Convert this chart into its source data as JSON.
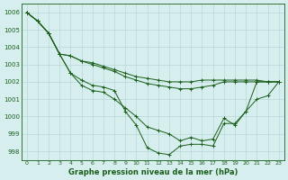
{
  "background_color": "#d6eeee",
  "grid_color": "#b8d8d8",
  "line_color": "#1a5e1a",
  "ylim": [
    997.5,
    1006.5
  ],
  "xlim": [
    -0.5,
    23.5
  ],
  "yticks": [
    998,
    999,
    1000,
    1001,
    1002,
    1003,
    1004,
    1005,
    1006
  ],
  "xticks": [
    0,
    1,
    2,
    3,
    4,
    5,
    6,
    7,
    8,
    9,
    10,
    11,
    12,
    13,
    14,
    15,
    16,
    17,
    18,
    19,
    20,
    21,
    22,
    23
  ],
  "xlabel": "Graphe pression niveau de la mer (hPa)",
  "series": [
    [
      1006.0,
      1005.5,
      1004.8,
      1003.6,
      1002.5,
      1002.1,
      1001.8,
      1001.7,
      1001.5,
      1000.3,
      999.5,
      998.2,
      997.9,
      997.8,
      998.3,
      998.4,
      998.4,
      998.3,
      999.6,
      999.6,
      1000.3,
      1002.0,
      1002.0,
      1002.0
    ],
    [
      1006.0,
      1005.5,
      1004.8,
      1003.6,
      1003.5,
      1003.2,
      1003.0,
      1002.8,
      1002.6,
      1002.3,
      1002.1,
      1001.9,
      1001.8,
      1001.7,
      1001.6,
      1001.6,
      1001.7,
      1001.8,
      1002.0,
      1002.0,
      1002.0,
      1002.0,
      1002.0,
      1002.0
    ],
    [
      1006.0,
      1005.5,
      1004.8,
      1003.6,
      1003.5,
      1003.2,
      1003.1,
      1002.9,
      1002.7,
      1002.5,
      1002.3,
      1002.2,
      1002.1,
      1002.0,
      1002.0,
      1002.0,
      1002.1,
      1002.1,
      1002.1,
      1002.1,
      1002.1,
      1002.1,
      1002.0,
      1002.0
    ],
    [
      1006.0,
      1005.5,
      1004.8,
      1003.6,
      1002.5,
      1001.8,
      1001.5,
      1001.4,
      1001.0,
      1000.5,
      1000.0,
      999.4,
      999.2,
      999.0,
      998.6,
      998.8,
      998.6,
      998.7,
      999.9,
      999.5,
      1000.3,
      1001.0,
      1001.2,
      1002.0
    ]
  ]
}
